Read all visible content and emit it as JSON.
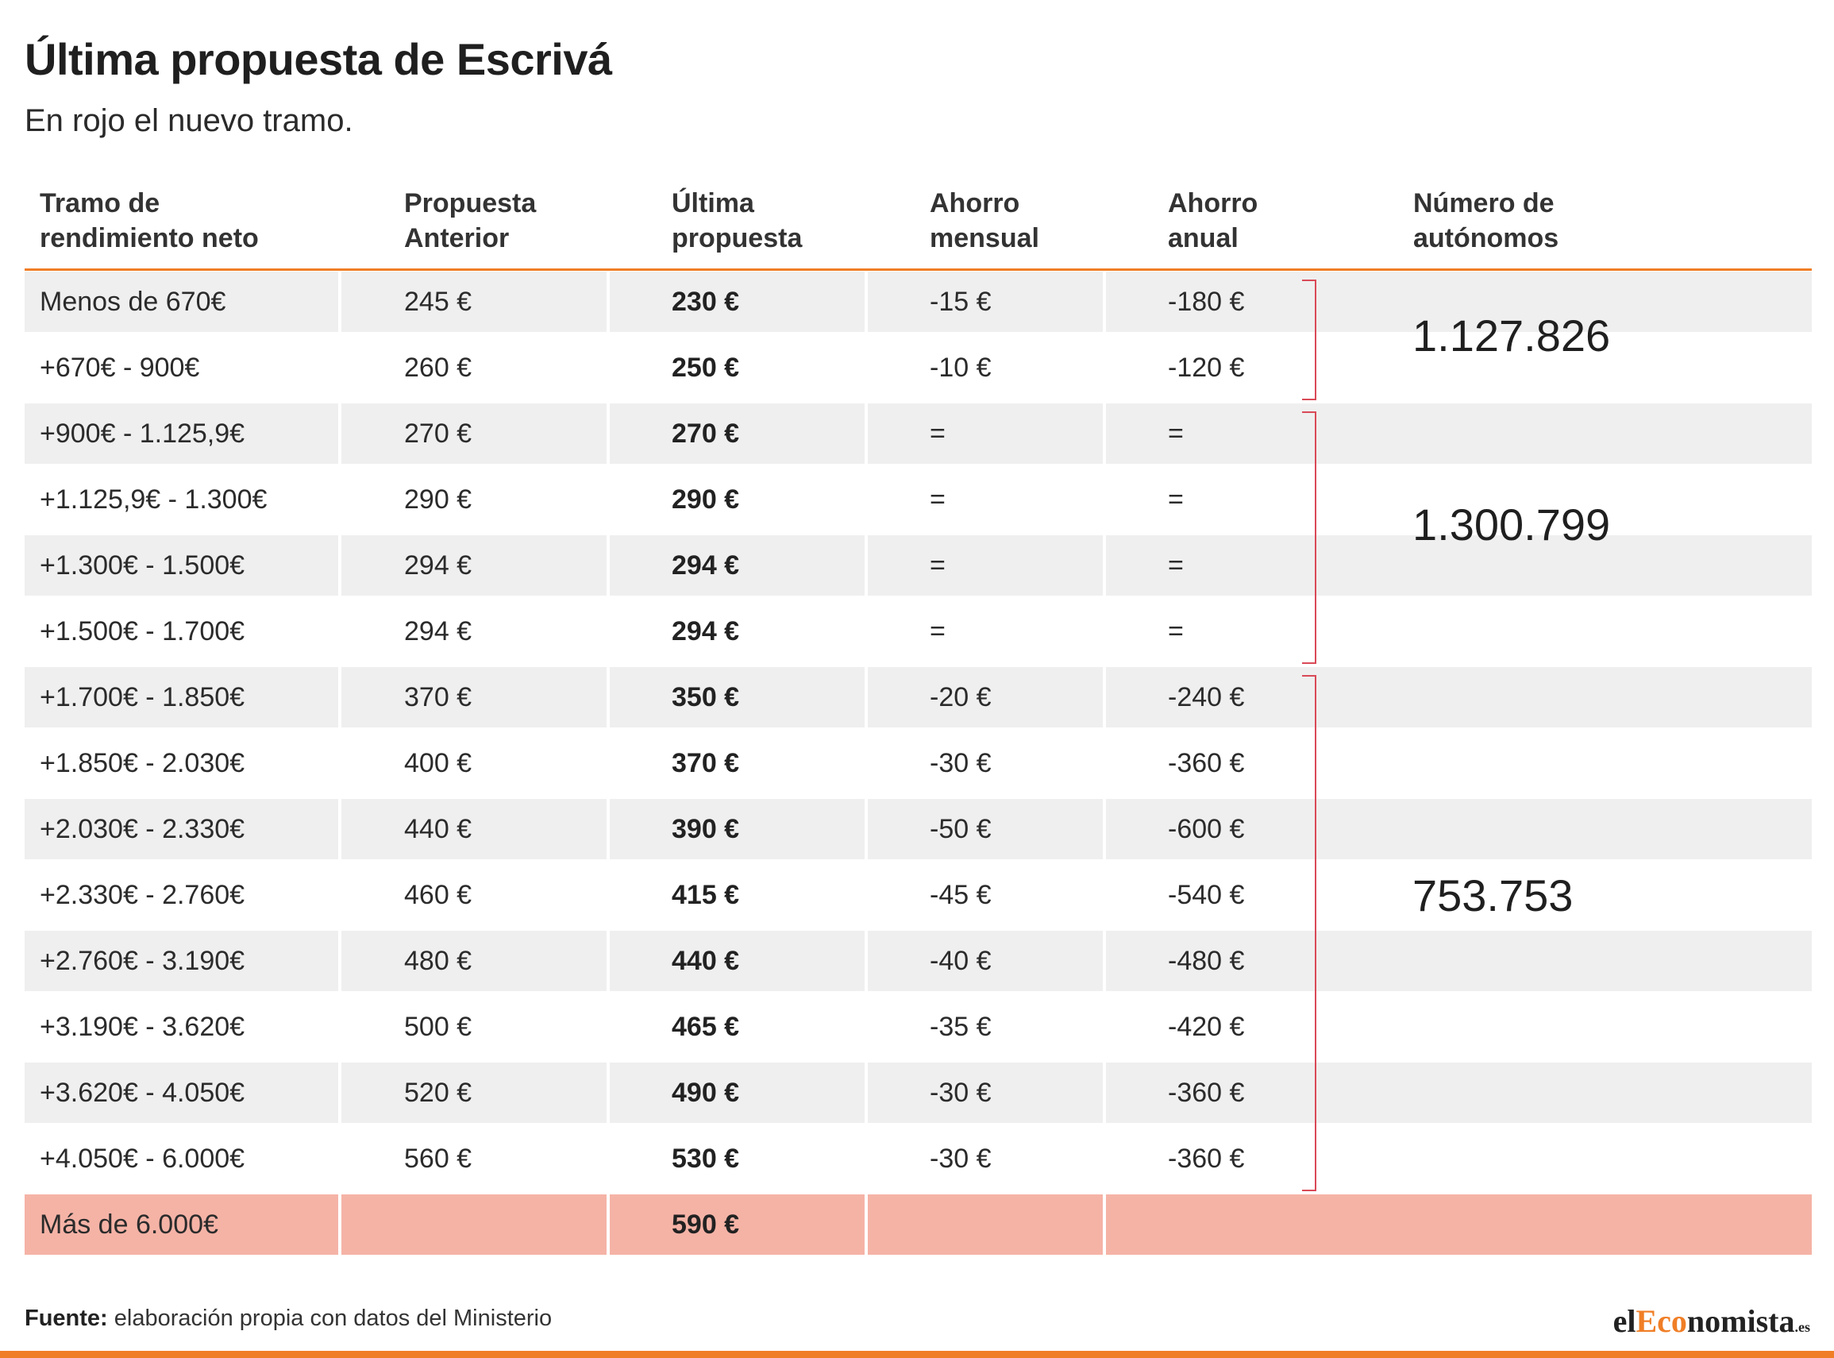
{
  "title": "Última propuesta de Escrivá",
  "subtitle": "En rojo el nuevo tramo.",
  "accent_color": "#f07e26",
  "highlight_color": "#f5b3a6",
  "bracket_color": "#d94a57",
  "table": {
    "headers": [
      "Tramo de\nrendimiento neto",
      "Propuesta\nAnterior",
      "Última\npropuesta",
      "Ahorro\nmensual",
      "Ahorro\nanual",
      "Número de\nautónomos"
    ],
    "rows": [
      {
        "tramo": "Menos de 670€",
        "anterior": "245 €",
        "ultima": "230 €",
        "mensual": "-15 €",
        "anual": "-180 €"
      },
      {
        "tramo": "+670€ - 900€",
        "anterior": "260 €",
        "ultima": "250 €",
        "mensual": "-10 €",
        "anual": "-120 €"
      },
      {
        "tramo": "+900€ - 1.125,9€",
        "anterior": "270 €",
        "ultima": "270 €",
        "mensual": "=",
        "anual": "="
      },
      {
        "tramo": "+1.125,9€ - 1.300€",
        "anterior": "290 €",
        "ultima": "290 €",
        "mensual": "=",
        "anual": "="
      },
      {
        "tramo": "+1.300€ - 1.500€",
        "anterior": "294 €",
        "ultima": "294 €",
        "mensual": "=",
        "anual": "="
      },
      {
        "tramo": "+1.500€ - 1.700€",
        "anterior": "294 €",
        "ultima": "294 €",
        "mensual": "=",
        "anual": "="
      },
      {
        "tramo": "+1.700€ - 1.850€",
        "anterior": "370 €",
        "ultima": "350 €",
        "mensual": "-20 €",
        "anual": "-240 €"
      },
      {
        "tramo": "+1.850€ - 2.030€",
        "anterior": "400 €",
        "ultima": "370 €",
        "mensual": "-30 €",
        "anual": "-360 €"
      },
      {
        "tramo": "+2.030€ - 2.330€",
        "anterior": "440 €",
        "ultima": "390 €",
        "mensual": "-50 €",
        "anual": "-600 €"
      },
      {
        "tramo": "+2.330€ - 2.760€",
        "anterior": "460 €",
        "ultima": "415 €",
        "mensual": "-45 €",
        "anual": "-540 €"
      },
      {
        "tramo": "+2.760€ - 3.190€",
        "anterior": "480 €",
        "ultima": "440 €",
        "mensual": "-40 €",
        "anual": "-480 €"
      },
      {
        "tramo": "+3.190€ - 3.620€",
        "anterior": "500 €",
        "ultima": "465 €",
        "mensual": "-35 €",
        "anual": "-420 €"
      },
      {
        "tramo": "+3.620€ - 4.050€",
        "anterior": "520 €",
        "ultima": "490 €",
        "mensual": "-30 €",
        "anual": "-360 €"
      },
      {
        "tramo": "+4.050€ - 6.000€",
        "anterior": "560 €",
        "ultima": "530 €",
        "mensual": "-30 €",
        "anual": "-360 €"
      }
    ],
    "new_row": {
      "tramo": "Más de 6.000€",
      "ultima": "590 €"
    },
    "groups": [
      {
        "value": "1.127.826",
        "rows": [
          0,
          1
        ]
      },
      {
        "value": "1.300.799",
        "rows": [
          2,
          5
        ]
      },
      {
        "value": "753.753",
        "rows": [
          6,
          13
        ]
      }
    ]
  },
  "footer": {
    "source_label": "Fuente:",
    "source_text": "elaboración propia con datos del Ministerio"
  },
  "logo": {
    "part1": "el",
    "part2": "Eco",
    "part3": "nomista",
    "tld": ".es"
  }
}
